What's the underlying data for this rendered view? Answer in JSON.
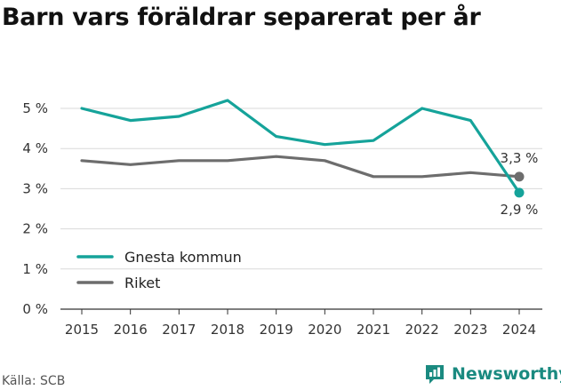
{
  "title": "Barn vars föräldrar separerat per år",
  "source": "Källa: SCB",
  "brand": {
    "name": "Newsworthy",
    "icon": "bar-chart-speech-icon"
  },
  "colors": {
    "gnesta": "#15a39a",
    "riket": "#6d6d6d",
    "grid": "#d9d9d9",
    "brand": "#1a8a80"
  },
  "chart_data": {
    "type": "line",
    "title": "Barn vars föräldrar separerat per år",
    "x": [
      "2015",
      "2016",
      "2017",
      "2018",
      "2019",
      "2020",
      "2021",
      "2022",
      "2023",
      "2024"
    ],
    "series": [
      {
        "name": "Gnesta kommun",
        "values": [
          5.0,
          4.7,
          4.8,
          5.2,
          4.3,
          4.1,
          4.2,
          5.0,
          4.7,
          2.9
        ],
        "end_label": "2,9 %"
      },
      {
        "name": "Riket",
        "values": [
          3.7,
          3.6,
          3.7,
          3.7,
          3.8,
          3.7,
          3.3,
          3.3,
          3.4,
          3.3
        ],
        "end_label": "3,3 %"
      }
    ],
    "ylim": [
      0,
      5
    ],
    "yticks": [
      0,
      1,
      2,
      3,
      4,
      5
    ],
    "ytick_labels": [
      "0 %",
      "1 %",
      "2 %",
      "3 %",
      "4 %",
      "5 %"
    ],
    "grid": true,
    "legend": "bottom-left"
  }
}
